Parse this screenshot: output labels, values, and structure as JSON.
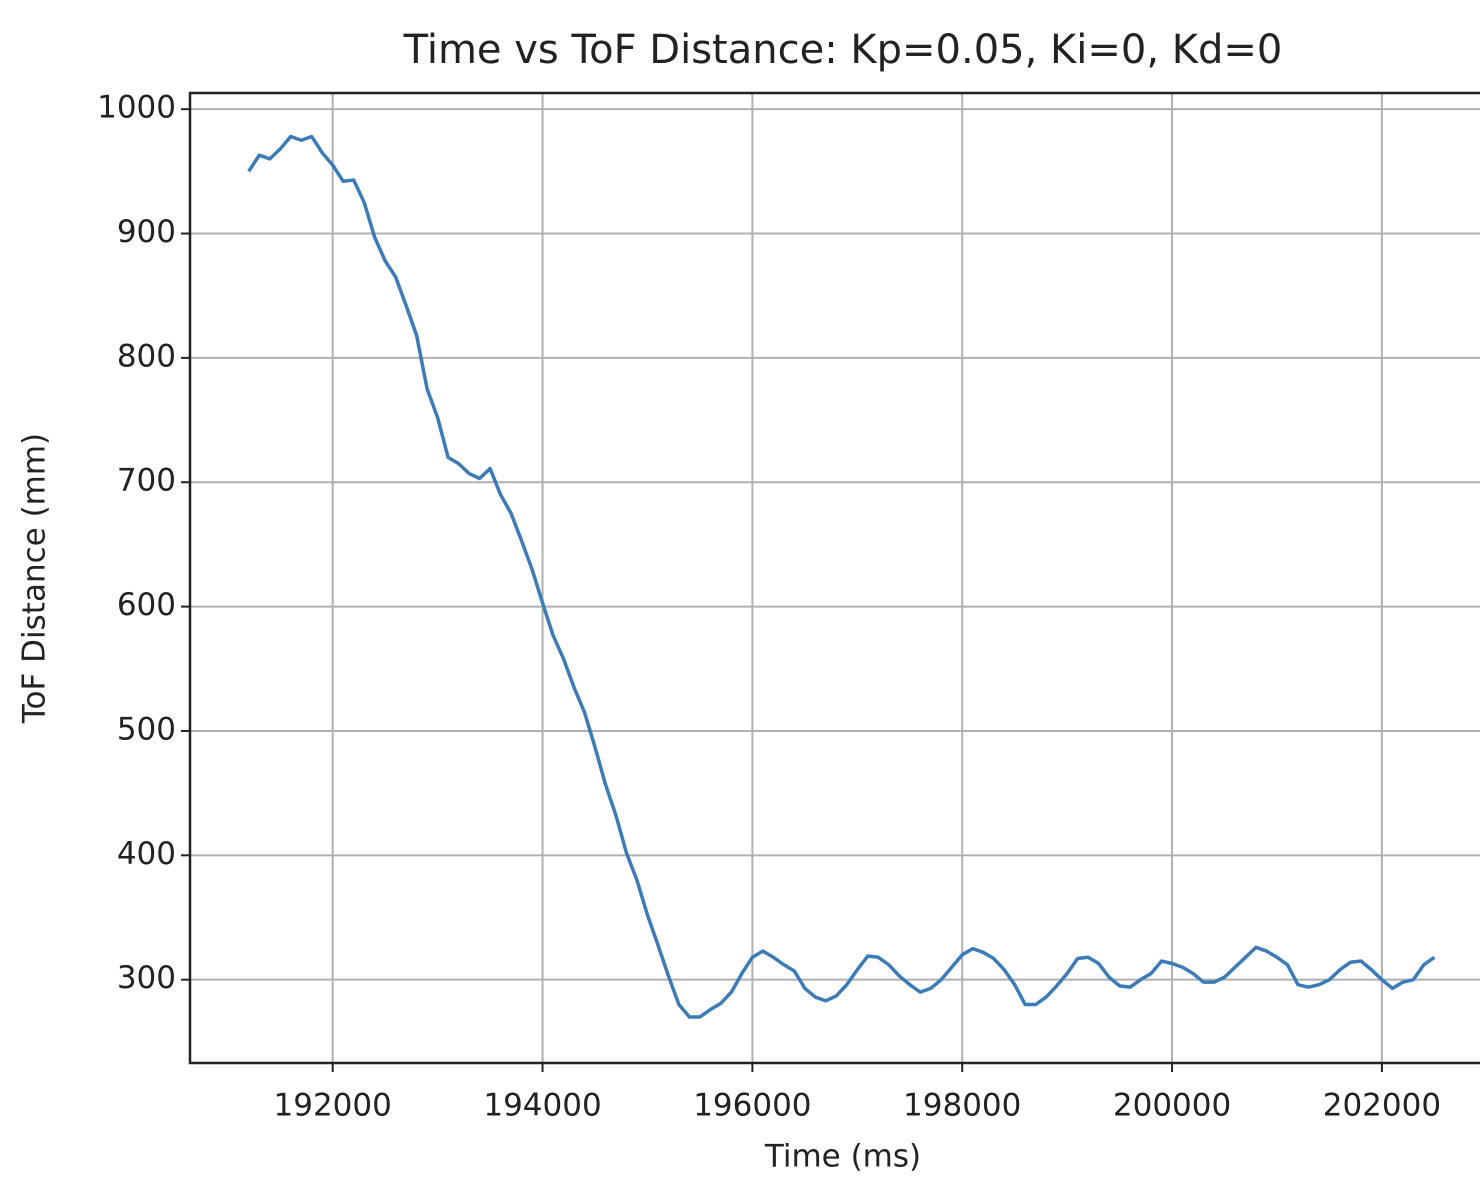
{
  "chart_data": {
    "type": "line",
    "title": "Time vs ToF Distance: Kp=0.05, Ki=0, Kd=0",
    "xlabel": "Time (ms)",
    "ylabel": "ToF Distance (mm)",
    "x": [
      191200,
      191300,
      191400,
      191500,
      191600,
      191700,
      191800,
      191900,
      192000,
      192100,
      192200,
      192300,
      192400,
      192500,
      192600,
      192700,
      192800,
      192900,
      193000,
      193100,
      193200,
      193300,
      193400,
      193500,
      193600,
      193700,
      193800,
      193900,
      194000,
      194100,
      194200,
      194300,
      194400,
      194500,
      194600,
      194700,
      194800,
      194900,
      195000,
      195100,
      195200,
      195300,
      195400,
      195500,
      195600,
      195700,
      195800,
      195900,
      196000,
      196100,
      196200,
      196300,
      196400,
      196500,
      196600,
      196700,
      196800,
      196900,
      197000,
      197100,
      197200,
      197300,
      197400,
      197500,
      197600,
      197700,
      197800,
      197900,
      198000,
      198100,
      198200,
      198300,
      198400,
      198500,
      198600,
      198700,
      198800,
      198900,
      199000,
      199100,
      199200,
      199300,
      199400,
      199500,
      199600,
      199700,
      199800,
      199900,
      200000,
      200100,
      200200,
      200300,
      200400,
      200500,
      200600,
      200700,
      200800,
      200900,
      201000,
      201100,
      201200,
      201300,
      201400,
      201500,
      201600,
      201700,
      201800,
      201900,
      202000,
      202100,
      202200,
      202300,
      202400,
      202500
    ],
    "series": [
      {
        "name": "ToF Distance",
        "color": "#3b7bb8",
        "values": [
          950,
          963,
          960,
          968,
          978,
          975,
          978,
          965,
          955,
          942,
          943,
          925,
          897,
          878,
          865,
          842,
          818,
          775,
          752,
          720,
          715,
          707,
          703,
          711,
          690,
          675,
          653,
          630,
          603,
          577,
          558,
          535,
          515,
          487,
          457,
          432,
          402,
          380,
          352,
          328,
          303,
          280,
          270,
          270,
          276,
          281,
          290,
          305,
          318,
          323,
          318,
          312,
          307,
          293,
          286,
          283,
          287,
          296,
          308,
          319,
          318,
          312,
          303,
          296,
          290,
          293,
          300,
          310,
          320,
          325,
          322,
          317,
          308,
          296,
          280,
          280,
          286,
          295,
          305,
          317,
          318,
          313,
          302,
          295,
          294,
          300,
          305,
          315,
          313,
          310,
          305,
          298,
          298,
          302,
          310,
          318,
          326,
          323,
          318,
          312,
          296,
          294,
          296,
          300,
          308,
          314,
          315,
          308,
          300,
          293,
          298,
          300,
          312,
          318
        ]
      }
    ],
    "xlim": [
      190640,
      202935
    ],
    "ylim": [
      233,
      1013
    ],
    "xticks": [
      192000,
      194000,
      196000,
      198000,
      200000,
      202000
    ],
    "yticks": [
      300,
      400,
      500,
      600,
      700,
      800,
      900,
      1000
    ],
    "grid": true
  }
}
